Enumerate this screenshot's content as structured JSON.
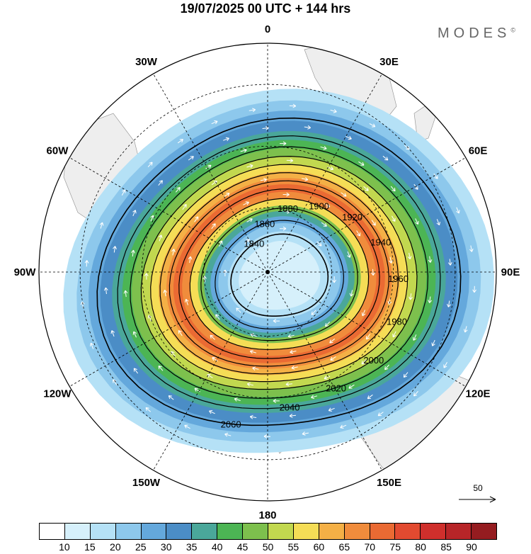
{
  "header": {
    "title": "19/07/2025  00 UTC  + 144 hrs",
    "brand": "MODES",
    "brand_mark": "©"
  },
  "map": {
    "projection": "south-polar-stereographic",
    "lon_labels": [
      {
        "text": "0",
        "lon": 0
      },
      {
        "text": "30E",
        "lon": 30
      },
      {
        "text": "60E",
        "lon": 60
      },
      {
        "text": "90E",
        "lon": 90
      },
      {
        "text": "120E",
        "lon": 120
      },
      {
        "text": "150E",
        "lon": 150
      },
      {
        "text": "180",
        "lon": 180
      },
      {
        "text": "150W",
        "lon": -150
      },
      {
        "text": "120W",
        "lon": -120
      },
      {
        "text": "90W",
        "lon": -90
      },
      {
        "text": "60W",
        "lon": -60
      },
      {
        "text": "30W",
        "lon": -30
      }
    ],
    "contours": [
      {
        "value": 1840,
        "label": "1840"
      },
      {
        "value": 1860,
        "label": "1860"
      },
      {
        "value": 1880,
        "label": "1880"
      },
      {
        "value": 1900,
        "label": "1900"
      },
      {
        "value": 1920,
        "label": "1920"
      },
      {
        "value": 1940,
        "label": "1940"
      },
      {
        "value": 1960,
        "label": "1960"
      },
      {
        "value": 1980,
        "label": "1980"
      },
      {
        "value": 2000,
        "label": "2000"
      },
      {
        "value": 2020,
        "label": "2020"
      },
      {
        "value": 2040,
        "label": "2040"
      },
      {
        "value": 2060,
        "label": "2060"
      }
    ],
    "reference_vector": {
      "value": "50"
    }
  },
  "colorbar": {
    "colors": [
      "#ffffff",
      "#d6f0fb",
      "#b5e1f6",
      "#8dc8ec",
      "#64a8dc",
      "#4b8dc6",
      "#4aa79a",
      "#4cb554",
      "#7dc04d",
      "#c2d84f",
      "#f5dd56",
      "#f4b046",
      "#f08c3c",
      "#ea6a33",
      "#e24a30",
      "#cf2f2c",
      "#b72528",
      "#951c20"
    ],
    "ticks": [
      "10",
      "15",
      "20",
      "25",
      "30",
      "35",
      "40",
      "45",
      "50",
      "55",
      "60",
      "65",
      "70",
      "75",
      "80",
      "85",
      "90"
    ]
  }
}
